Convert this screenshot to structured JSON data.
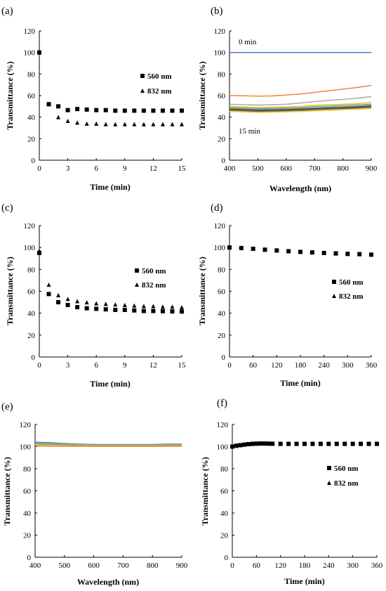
{
  "chart_data": [
    {
      "panel": "(a)",
      "type": "scatter",
      "xlabel": "Time (min)",
      "ylabel": "Transmittance (%)",
      "xlim": [
        0,
        15
      ],
      "ylim": [
        0,
        120
      ],
      "xticks": [
        0,
        3,
        6,
        9,
        12,
        15
      ],
      "yticks": [
        0,
        20,
        40,
        60,
        80,
        100,
        120
      ],
      "legend_position": "center-right",
      "series": [
        {
          "name": "560 nm",
          "marker": "square",
          "x": [
            0,
            1,
            2,
            3,
            4,
            5,
            6,
            7,
            8,
            9,
            10,
            11,
            12,
            13,
            14,
            15
          ],
          "y": [
            100,
            52,
            50,
            46.5,
            47.5,
            47,
            46.5,
            46.5,
            46,
            46,
            46,
            46,
            46,
            46,
            46,
            46
          ]
        },
        {
          "name": "832 nm",
          "marker": "triangle",
          "x": [
            0,
            1,
            2,
            3,
            4,
            5,
            6,
            7,
            8,
            9,
            10,
            11,
            12,
            13,
            14,
            15
          ],
          "y": [
            100,
            52,
            40,
            36.5,
            35,
            34,
            34,
            33.5,
            33.5,
            33.5,
            33.5,
            33.5,
            33.5,
            33.5,
            33.5,
            33.5
          ]
        }
      ]
    },
    {
      "panel": "(b)",
      "type": "line",
      "xlabel": "Wavelength (nm)",
      "ylabel": "Transmittance (%)",
      "xlim": [
        400,
        900
      ],
      "ylim": [
        0,
        120
      ],
      "xticks": [
        400,
        500,
        600,
        700,
        800,
        900
      ],
      "yticks": [
        0,
        20,
        40,
        60,
        80,
        100,
        120
      ],
      "x": [
        400,
        450,
        500,
        550,
        600,
        650,
        700,
        750,
        800,
        850,
        900
      ],
      "annotations": [
        {
          "text": "0 min",
          "x": 430,
          "y": 108
        },
        {
          "text": "15 min",
          "x": 432,
          "y": 26
        }
      ],
      "series": [
        {
          "color": "#4472c4",
          "y": [
            100,
            100,
            100,
            100,
            100,
            100,
            100,
            100,
            100,
            100,
            100
          ]
        },
        {
          "color": "#ed7d31",
          "y": [
            60,
            59.8,
            59.5,
            59.7,
            60.5,
            61.5,
            63,
            64.5,
            66,
            67.5,
            69.5
          ]
        },
        {
          "color": "#a5a5a5",
          "y": [
            52,
            51.6,
            51.2,
            51.5,
            52,
            53,
            54.5,
            55.5,
            56.5,
            57.5,
            59
          ]
        },
        {
          "color": "#ffc000",
          "y": [
            50,
            49.5,
            49,
            49.2,
            49.5,
            50,
            51,
            51.5,
            52,
            52.5,
            53.5
          ]
        },
        {
          "color": "#5b9bd5",
          "y": [
            49,
            48.5,
            48,
            48.2,
            48.5,
            49,
            49.8,
            50.3,
            50.8,
            51.3,
            52
          ]
        },
        {
          "color": "#70ad47",
          "y": [
            48,
            47.5,
            47,
            47.2,
            47.5,
            48,
            48.6,
            49.1,
            49.6,
            50.1,
            51
          ]
        },
        {
          "color": "#264478",
          "y": [
            47.5,
            47,
            46.5,
            46.7,
            47,
            47.4,
            48,
            48.5,
            49,
            49.5,
            50.3
          ]
        },
        {
          "color": "#9e480e",
          "y": [
            47,
            46.5,
            46,
            46.2,
            46.5,
            46.9,
            47.5,
            48,
            48.5,
            49,
            49.8
          ]
        },
        {
          "color": "#636363",
          "y": [
            46.5,
            46,
            45.5,
            45.7,
            46,
            46.4,
            47,
            47.5,
            48,
            48.5,
            49.3
          ]
        },
        {
          "color": "#997300",
          "y": [
            46.2,
            45.7,
            45.2,
            45.4,
            45.7,
            46.1,
            46.7,
            47.2,
            47.7,
            48.2,
            49
          ]
        },
        {
          "color": "#255e91",
          "y": [
            46,
            45.5,
            45,
            45.2,
            45.5,
            45.9,
            46.5,
            47,
            47.5,
            48,
            48.7
          ]
        },
        {
          "color": "#43682b",
          "y": [
            45.8,
            45.3,
            44.8,
            45,
            45.3,
            45.7,
            46.3,
            46.8,
            47.3,
            47.8,
            48.5
          ]
        },
        {
          "color": "#698ed0",
          "y": [
            45.6,
            45.1,
            44.6,
            44.8,
            45.1,
            45.5,
            46.1,
            46.6,
            47.1,
            47.6,
            48.3
          ]
        },
        {
          "color": "#f1975a",
          "y": [
            45.5,
            45,
            44.5,
            44.7,
            45,
            45.4,
            46,
            46.5,
            47,
            47.5,
            48.2
          ]
        },
        {
          "color": "#b7b7b7",
          "y": [
            45.4,
            44.9,
            44.4,
            44.6,
            44.9,
            45.3,
            45.9,
            46.4,
            46.9,
            47.4,
            48.1
          ]
        },
        {
          "color": "#ffcd33",
          "y": [
            45.3,
            44.8,
            44.3,
            44.5,
            44.8,
            45.2,
            45.8,
            46.3,
            46.8,
            47.3,
            48
          ]
        }
      ]
    },
    {
      "panel": "(c)",
      "type": "scatter",
      "xlabel": "Time (min)",
      "ylabel": "Transmittance (%)",
      "xlim": [
        0,
        15
      ],
      "ylim": [
        0,
        120
      ],
      "xticks": [
        0,
        3,
        6,
        9,
        12,
        15
      ],
      "yticks": [
        0,
        20,
        40,
        60,
        80,
        100,
        120
      ],
      "legend_position": "center-right",
      "series": [
        {
          "name": "560 nm",
          "marker": "square",
          "x": [
            0,
            1,
            2,
            3,
            4,
            5,
            6,
            7,
            8,
            9,
            10,
            11,
            12,
            13,
            14,
            15
          ],
          "y": [
            95,
            57.5,
            50,
            47.5,
            45.5,
            44.5,
            44,
            43.5,
            43,
            43,
            42.5,
            42,
            42,
            41.8,
            41.6,
            41.5
          ]
        },
        {
          "name": "832 nm",
          "marker": "triangle",
          "x": [
            0,
            1,
            2,
            3,
            4,
            5,
            6,
            7,
            8,
            9,
            10,
            11,
            12,
            13,
            14,
            15
          ],
          "y": [
            97,
            66,
            56.5,
            53,
            51,
            50,
            49,
            48.5,
            48,
            47.5,
            47,
            46.5,
            46.5,
            46,
            46,
            45.5
          ]
        }
      ]
    },
    {
      "panel": "(d)",
      "type": "scatter",
      "xlabel": "Time (min)",
      "ylabel": "Transmittance (%)",
      "xlim": [
        0,
        360
      ],
      "ylim": [
        0,
        120
      ],
      "xticks": [
        0,
        60,
        120,
        180,
        240,
        300,
        360
      ],
      "yticks": [
        0,
        20,
        40,
        60,
        80,
        100,
        120
      ],
      "legend_position": "bottom-right",
      "series": [
        {
          "name": "560 nm",
          "marker": "square",
          "x": [
            0,
            30,
            60,
            90,
            120,
            150,
            180,
            210,
            240,
            270,
            300,
            330,
            360
          ],
          "y": [
            100,
            99.5,
            98.8,
            98,
            97.3,
            96.6,
            96,
            95.5,
            95,
            94.6,
            94.2,
            93.9,
            93.5
          ]
        },
        {
          "name": "832 nm",
          "marker": "triangle",
          "x": [
            0,
            30,
            60,
            90,
            120,
            150,
            180,
            210,
            240,
            270,
            300,
            330,
            360
          ],
          "y": [
            100,
            99.5,
            98.8,
            98,
            97.3,
            96.6,
            96,
            95.5,
            95,
            94.6,
            94.2,
            93.9,
            93.5
          ]
        }
      ]
    },
    {
      "panel": "(e)",
      "type": "line",
      "xlabel": "Wavelength (nm)",
      "ylabel": "Transmittance (%)",
      "xlim": [
        400,
        900
      ],
      "ylim": [
        0,
        120
      ],
      "xticks": [
        400,
        500,
        600,
        700,
        800,
        900
      ],
      "yticks": [
        0,
        20,
        40,
        60,
        80,
        100,
        120
      ],
      "x": [
        400,
        450,
        500,
        550,
        600,
        650,
        700,
        750,
        800,
        850,
        900
      ],
      "series": [
        {
          "color": "#4472c4",
          "y": [
            104,
            103.5,
            102.8,
            102.3,
            102,
            102,
            102,
            102,
            102,
            102.2,
            102.2
          ]
        },
        {
          "color": "#70ad47",
          "y": [
            103.5,
            103,
            102.4,
            101.9,
            101.7,
            101.7,
            101.7,
            101.7,
            101.7,
            101.9,
            101.9
          ]
        },
        {
          "color": "#a5a5a5",
          "y": [
            103,
            102.5,
            102,
            101.6,
            101.4,
            101.4,
            101.4,
            101.4,
            101.4,
            101.6,
            101.6
          ]
        },
        {
          "color": "#5b9bd5",
          "y": [
            102.5,
            102,
            101.6,
            101.3,
            101.1,
            101.1,
            101.1,
            101.1,
            101.1,
            101.3,
            101.3
          ]
        },
        {
          "color": "#ffc000",
          "y": [
            101.5,
            101.3,
            101,
            100.8,
            100.7,
            100.7,
            100.7,
            100.7,
            100.7,
            100.8,
            100.8
          ]
        },
        {
          "color": "#ed7d31",
          "y": [
            100.5,
            100.4,
            100.3,
            100.2,
            100.2,
            100.2,
            100.2,
            100.2,
            100.2,
            100.3,
            100.3
          ]
        }
      ]
    },
    {
      "panel": "(f)",
      "type": "scatter",
      "xlabel": "Time (min)",
      "ylabel": "Transmittance (%)",
      "xlim": [
        0,
        360
      ],
      "ylim": [
        0,
        120
      ],
      "xticks": [
        0,
        60,
        120,
        180,
        240,
        300,
        360
      ],
      "yticks": [
        0,
        20,
        40,
        60,
        80,
        100,
        120
      ],
      "legend_position": "center-right",
      "series": [
        {
          "name": "560 nm",
          "marker": "square",
          "x": [
            0,
            10,
            20,
            30,
            40,
            50,
            60,
            70,
            80,
            90,
            100,
            120,
            140,
            160,
            180,
            200,
            220,
            240,
            260,
            280,
            300,
            320,
            340,
            360
          ],
          "y": [
            100,
            100.8,
            101.3,
            101.8,
            102.2,
            102.5,
            102.7,
            102.8,
            102.8,
            102.7,
            102.6,
            102.5,
            102.5,
            102.5,
            102.5,
            102.5,
            102.5,
            102.5,
            102.5,
            102.5,
            102.5,
            102.5,
            102.5,
            102.5
          ]
        },
        {
          "name": "832 nm",
          "marker": "triangle",
          "x": [
            0,
            10,
            20,
            30,
            40,
            50,
            60,
            70,
            80,
            90,
            100,
            120,
            140,
            160,
            180,
            200,
            220,
            240,
            260,
            280,
            300,
            320,
            340,
            360
          ],
          "y": [
            100,
            100.8,
            101.3,
            101.8,
            102.2,
            102.5,
            102.7,
            102.8,
            102.8,
            102.7,
            102.6,
            102.5,
            102.5,
            102.5,
            102.5,
            102.5,
            102.5,
            102.5,
            102.5,
            102.5,
            102.5,
            102.5,
            102.5,
            102.5
          ]
        }
      ]
    }
  ]
}
